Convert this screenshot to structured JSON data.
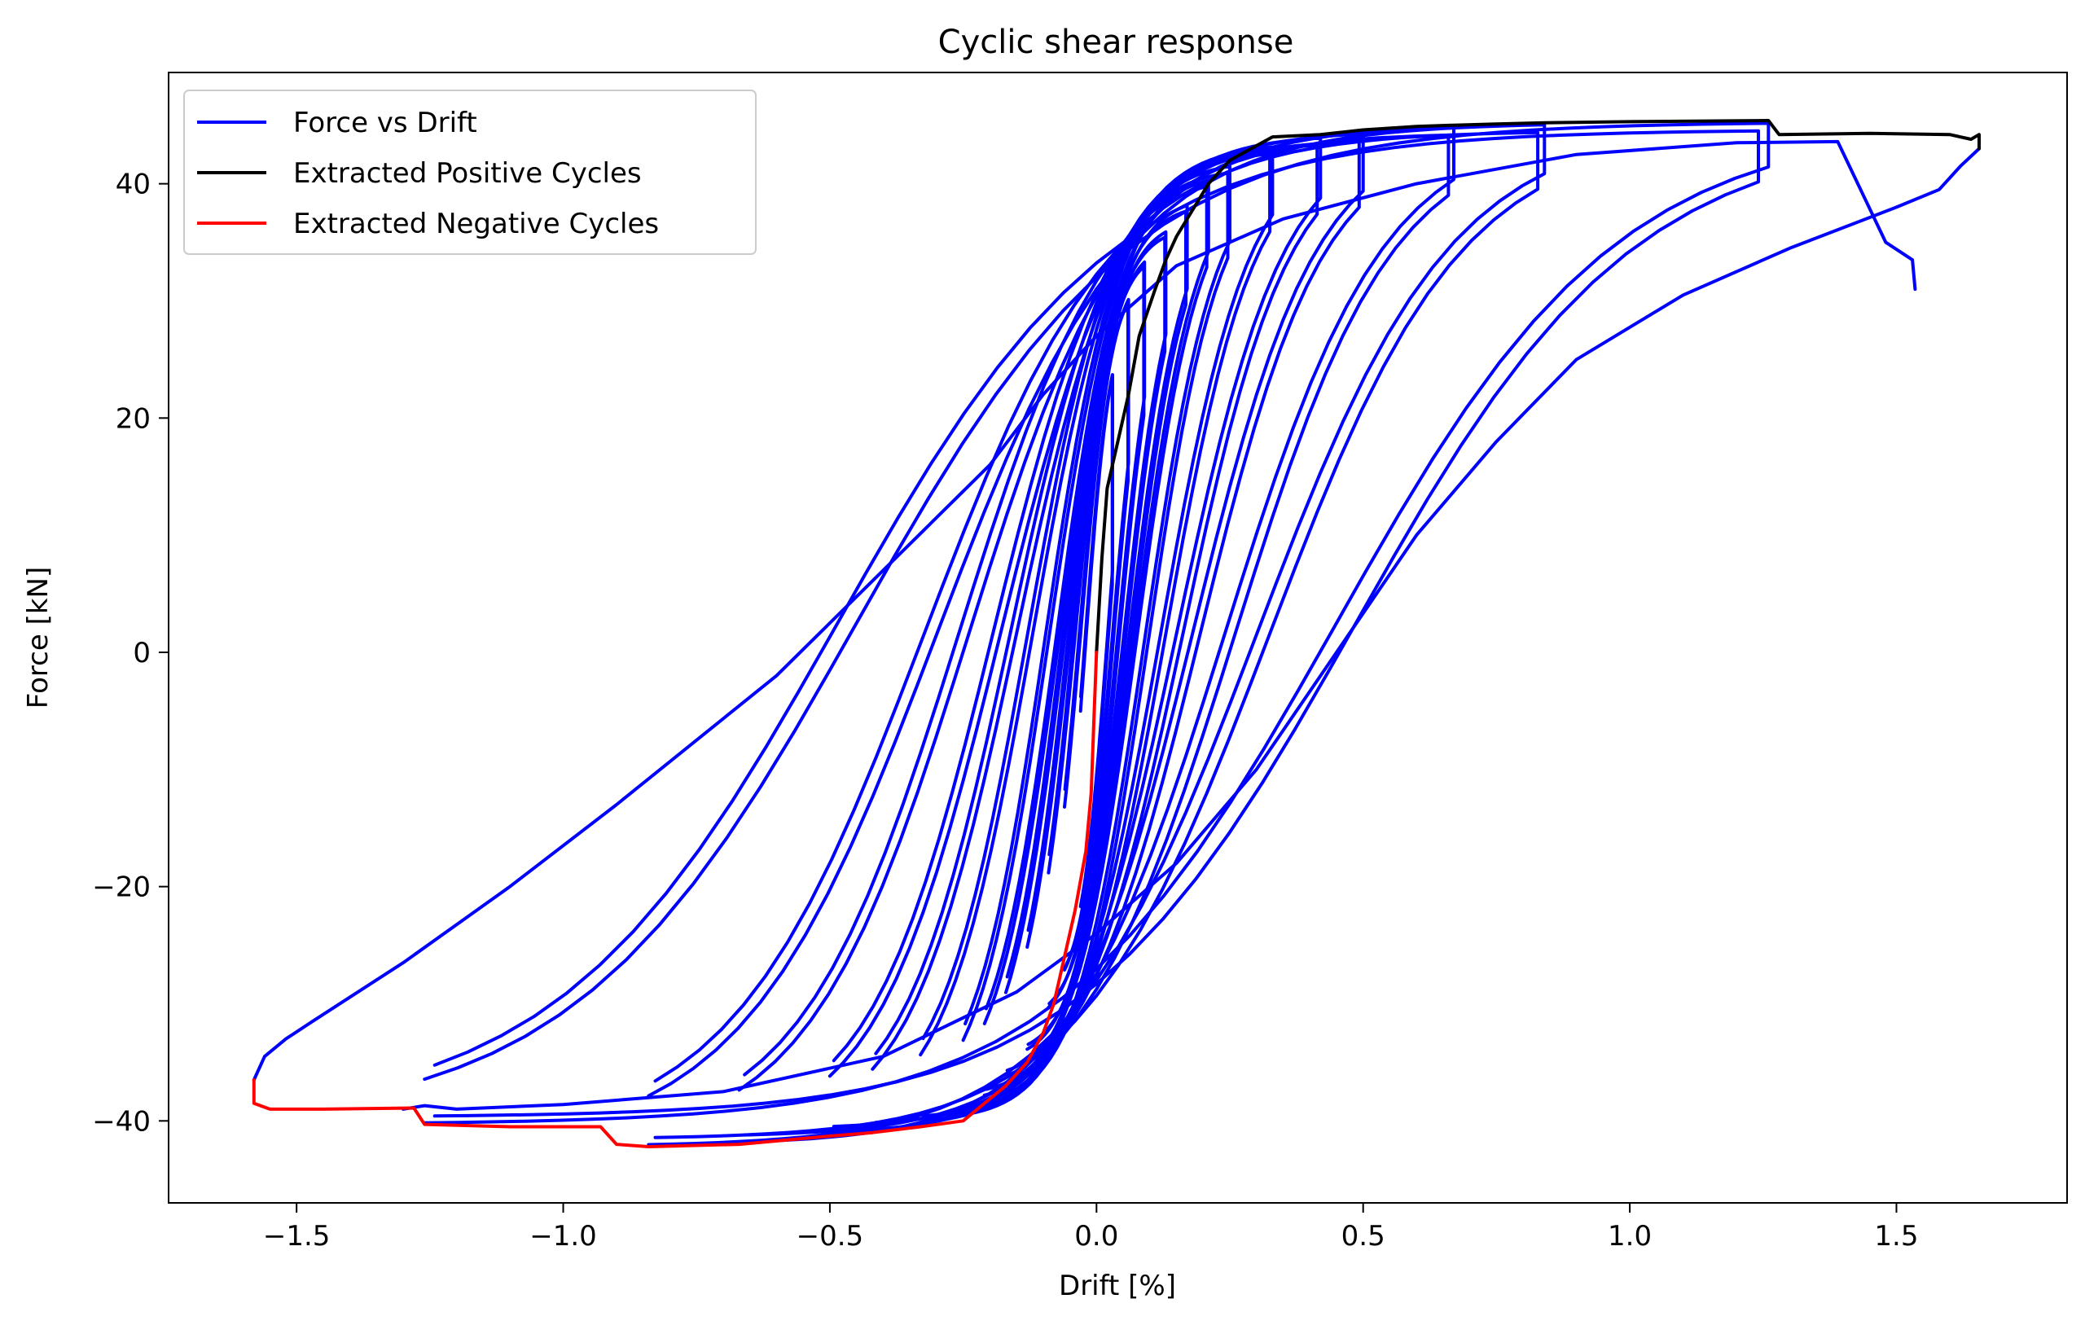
{
  "chart_data": {
    "type": "line",
    "title": "Cyclic shear response",
    "xlabel": "Drift [%]",
    "ylabel": "Force [kN]",
    "xlim": [
      -1.74,
      1.82
    ],
    "ylim": [
      -47.0,
      49.5
    ],
    "xticks": [
      -1.5,
      -1.0,
      -0.5,
      0.0,
      0.5,
      1.0,
      1.5
    ],
    "xtick_labels": [
      "−1.5",
      "−1.0",
      "−0.5",
      "0.0",
      "0.5",
      "1.0",
      "1.5"
    ],
    "yticks": [
      -40,
      -20,
      0,
      20,
      40
    ],
    "ytick_labels": [
      "−40",
      "−20",
      "0",
      "20",
      "40"
    ],
    "grid": false,
    "legend_position": "top-left",
    "amplitudes": [
      0.06,
      0.09,
      0.13,
      0.17,
      0.21,
      0.25,
      0.33,
      0.42,
      0.5,
      0.67,
      0.84,
      1.26
    ],
    "series": [
      {
        "name": "Force vs Drift",
        "color": "#0000ff",
        "cycles": [
          {
            "pos": [
              0.0,
              0.0
            ],
            "neg": [
              0.0,
              0.0
            ],
            "pos_force": 30,
            "neg_force": -28,
            "unload": 0.02,
            "fat": 0.02
          },
          {
            "pos": [
              0.06,
              0.06
            ],
            "neg": [
              -0.06,
              -0.06
            ],
            "pos_force": 33,
            "neg_force": -30,
            "unload": 0.03,
            "fat": 0.03
          },
          {
            "pos": [
              0.09,
              0.09
            ],
            "neg": [
              -0.09,
              -0.09
            ],
            "pos_force": 35,
            "neg_force": -32,
            "unload": 0.04,
            "fat": 0.04
          },
          {
            "pos": [
              0.13,
              0.13
            ],
            "neg": [
              -0.13,
              -0.13
            ],
            "pos_force": 37,
            "neg_force": -35,
            "unload": 0.05,
            "fat": 0.05
          },
          {
            "pos": [
              0.17,
              0.17
            ],
            "neg": [
              -0.17,
              -0.17
            ],
            "pos_force": 39,
            "neg_force": -37,
            "unload": 0.06,
            "fat": 0.06
          },
          {
            "pos": [
              0.21,
              0.21
            ],
            "neg": [
              -0.21,
              -0.21
            ],
            "pos_force": 41,
            "neg_force": -38.5,
            "unload": 0.07,
            "fat": 0.07
          },
          {
            "pos": [
              0.25,
              0.25
            ],
            "neg": [
              -0.25,
              -0.25
            ],
            "pos_force": 42,
            "neg_force": -40,
            "unload": 0.09,
            "fat": 0.09
          },
          {
            "pos": [
              0.33,
              0.33
            ],
            "neg": [
              -0.33,
              -0.33
            ],
            "pos_force": 43.5,
            "neg_force": -40.5,
            "unload": 0.12,
            "fat": 0.12
          },
          {
            "pos": [
              0.42,
              0.42
            ],
            "neg": [
              -0.42,
              -0.42
            ],
            "pos_force": 44.2,
            "neg_force": -41,
            "unload": 0.15,
            "fat": 0.15
          },
          {
            "pos": [
              0.5,
              0.5
            ],
            "neg": [
              -0.5,
              -0.5
            ],
            "pos_force": 44.5,
            "neg_force": -41.3,
            "unload": 0.18,
            "fat": 0.18
          },
          {
            "pos": [
              0.67,
              0.67
            ],
            "neg": [
              -0.67,
              -0.67
            ],
            "pos_force": 45,
            "neg_force": -42,
            "unload": 0.24,
            "fat": 0.24
          },
          {
            "pos": [
              0.84,
              0.84
            ],
            "neg": [
              -0.84,
              -0.84
            ],
            "pos_force": 45.2,
            "neg_force": -42.2,
            "unload": 0.3,
            "fat": 0.3
          },
          {
            "pos": [
              1.26,
              1.26
            ],
            "neg": [
              -1.26,
              -1.26
            ],
            "pos_force": 45.3,
            "neg_force": -40.3,
            "unload": 0.45,
            "fat": 0.45
          }
        ],
        "final_excursion": [
          [
            -1.58,
            -36.5
          ],
          [
            -1.56,
            -34.5
          ],
          [
            -1.52,
            -33.0
          ],
          [
            -1.47,
            -31.5
          ],
          [
            -1.3,
            -26.5
          ],
          [
            -1.1,
            -20.0
          ],
          [
            -0.9,
            -13.0
          ],
          [
            -0.6,
            -2.0
          ],
          [
            -0.4,
            7.0
          ],
          [
            -0.2,
            16.0
          ],
          [
            -0.1,
            22.0
          ],
          [
            0.0,
            27.0
          ],
          [
            0.15,
            33.0
          ],
          [
            0.35,
            37.0
          ],
          [
            0.6,
            40.0
          ],
          [
            0.9,
            42.5
          ],
          [
            1.2,
            43.5
          ],
          [
            1.39,
            43.6
          ],
          [
            1.48,
            35.0
          ],
          [
            1.53,
            33.5
          ],
          [
            1.535,
            31.0
          ]
        ],
        "final_return": [
          [
            1.655,
            43.0
          ],
          [
            1.62,
            41.5
          ],
          [
            1.58,
            39.5
          ],
          [
            1.5,
            38.0
          ],
          [
            1.3,
            34.5
          ],
          [
            1.1,
            30.5
          ],
          [
            0.9,
            25.0
          ],
          [
            0.75,
            18.0
          ],
          [
            0.6,
            10.0
          ],
          [
            0.45,
            0.0
          ],
          [
            0.3,
            -10.0
          ],
          [
            0.15,
            -18.0
          ],
          [
            0.0,
            -24.0
          ],
          [
            -0.15,
            -29.0
          ],
          [
            -0.4,
            -34.5
          ],
          [
            -0.7,
            -37.5
          ],
          [
            -1.0,
            -38.6
          ],
          [
            -1.2,
            -39.0
          ],
          [
            -1.26,
            -38.7
          ],
          [
            -1.3,
            -39.0
          ]
        ]
      },
      {
        "name": "Extracted Positive Cycles",
        "color": "#000000",
        "points": [
          [
            0.0,
            0.0
          ],
          [
            0.01,
            8.0
          ],
          [
            0.02,
            14.0
          ],
          [
            0.04,
            18.0
          ],
          [
            0.06,
            22.0
          ],
          [
            0.08,
            27.0
          ],
          [
            0.11,
            31.0
          ],
          [
            0.13,
            33.5
          ],
          [
            0.15,
            35.5
          ],
          [
            0.17,
            37.0
          ],
          [
            0.21,
            40.0
          ],
          [
            0.25,
            42.0
          ],
          [
            0.29,
            43.0
          ],
          [
            0.33,
            44.0
          ],
          [
            0.42,
            44.2
          ],
          [
            0.5,
            44.6
          ],
          [
            0.6,
            44.9
          ],
          [
            0.67,
            45.0
          ],
          [
            0.75,
            45.1
          ],
          [
            0.84,
            45.2
          ],
          [
            1.0,
            45.3
          ],
          [
            1.26,
            45.4
          ],
          [
            1.28,
            44.2
          ],
          [
            1.45,
            44.3
          ],
          [
            1.6,
            44.2
          ],
          [
            1.64,
            43.8
          ],
          [
            1.655,
            44.2
          ],
          [
            1.655,
            43.0
          ]
        ]
      },
      {
        "name": "Extracted Negative Cycles",
        "color": "#ff0000",
        "points": [
          [
            0.0,
            0.0
          ],
          [
            -0.005,
            -6.0
          ],
          [
            -0.01,
            -12.0
          ],
          [
            -0.02,
            -17.0
          ],
          [
            -0.04,
            -22.0
          ],
          [
            -0.06,
            -26.0
          ],
          [
            -0.08,
            -30.0
          ],
          [
            -0.1,
            -32.5
          ],
          [
            -0.13,
            -35.0
          ],
          [
            -0.17,
            -37.0
          ],
          [
            -0.21,
            -38.5
          ],
          [
            -0.25,
            -40.0
          ],
          [
            -0.33,
            -40.5
          ],
          [
            -0.42,
            -41.0
          ],
          [
            -0.5,
            -41.3
          ],
          [
            -0.67,
            -42.0
          ],
          [
            -0.84,
            -42.2
          ],
          [
            -0.9,
            -42.0
          ],
          [
            -0.93,
            -40.5
          ],
          [
            -1.1,
            -40.5
          ],
          [
            -1.26,
            -40.3
          ],
          [
            -1.28,
            -38.9
          ],
          [
            -1.45,
            -39.0
          ],
          [
            -1.55,
            -39.0
          ],
          [
            -1.58,
            -38.5
          ],
          [
            -1.58,
            -36.5
          ]
        ]
      }
    ]
  }
}
